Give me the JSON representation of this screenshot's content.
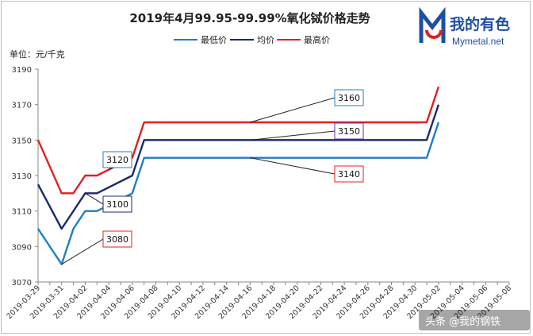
{
  "chart_data": {
    "type": "line",
    "title": "2019年4月99.95-99.99%氧化铽价格走势",
    "unit_label": "单位：元/千克",
    "ylim": [
      3070,
      3190
    ],
    "yticks": [
      3070,
      3090,
      3110,
      3130,
      3150,
      3170,
      3190
    ],
    "x_dates": [
      "2019-03-29",
      "2019-03-31",
      "2019-04-02",
      "2019-04-04",
      "2019-04-06",
      "2019-04-08",
      "2019-04-10",
      "2019-04-12",
      "2019-04-14",
      "2019-04-16",
      "2019-04-18",
      "2019-04-20",
      "2019-04-22",
      "2019-04-24",
      "2019-04-26",
      "2019-04-28",
      "2019-04-30",
      "2019-05-02",
      "2019-05-04",
      "2019-05-06",
      "2019-05-08"
    ],
    "series": [
      {
        "name": "最低价",
        "color": "#1f7fbf",
        "points": [
          [
            0,
            3100
          ],
          [
            2,
            3080
          ],
          [
            3,
            3100
          ],
          [
            4,
            3110
          ],
          [
            5,
            3110
          ],
          [
            8,
            3120
          ],
          [
            9,
            3140
          ],
          [
            33,
            3140
          ],
          [
            34,
            3160
          ]
        ]
      },
      {
        "name": "均价",
        "color": "#1a2a6c",
        "points": [
          [
            0,
            3125
          ],
          [
            2,
            3100
          ],
          [
            4,
            3120
          ],
          [
            5,
            3120
          ],
          [
            8,
            3130
          ],
          [
            9,
            3150
          ],
          [
            33,
            3150
          ],
          [
            34,
            3170
          ]
        ]
      },
      {
        "name": "最高价",
        "color": "#e02020",
        "points": [
          [
            0,
            3150
          ],
          [
            2,
            3120
          ],
          [
            3,
            3120
          ],
          [
            4,
            3130
          ],
          [
            5,
            3130
          ],
          [
            8,
            3140
          ],
          [
            9,
            3160
          ],
          [
            33,
            3160
          ],
          [
            34,
            3180
          ]
        ]
      }
    ],
    "annotations": [
      {
        "text": "3120",
        "series": 2,
        "border": "#1f7fbf"
      },
      {
        "text": "3100",
        "series": 1,
        "border": "#1a2a6c"
      },
      {
        "text": "3080",
        "series": 0,
        "border": "#e02020"
      },
      {
        "text": "3160",
        "series": 2,
        "border": "#1f7fbf"
      },
      {
        "text": "3150",
        "series": 1,
        "border": "#7030a0"
      },
      {
        "text": "3140",
        "series": 0,
        "border": "#e02020"
      }
    ]
  },
  "logo": {
    "cn": "我的有色",
    "en": "Mymetal.net"
  },
  "watermark": "头条 @我的钢铁"
}
